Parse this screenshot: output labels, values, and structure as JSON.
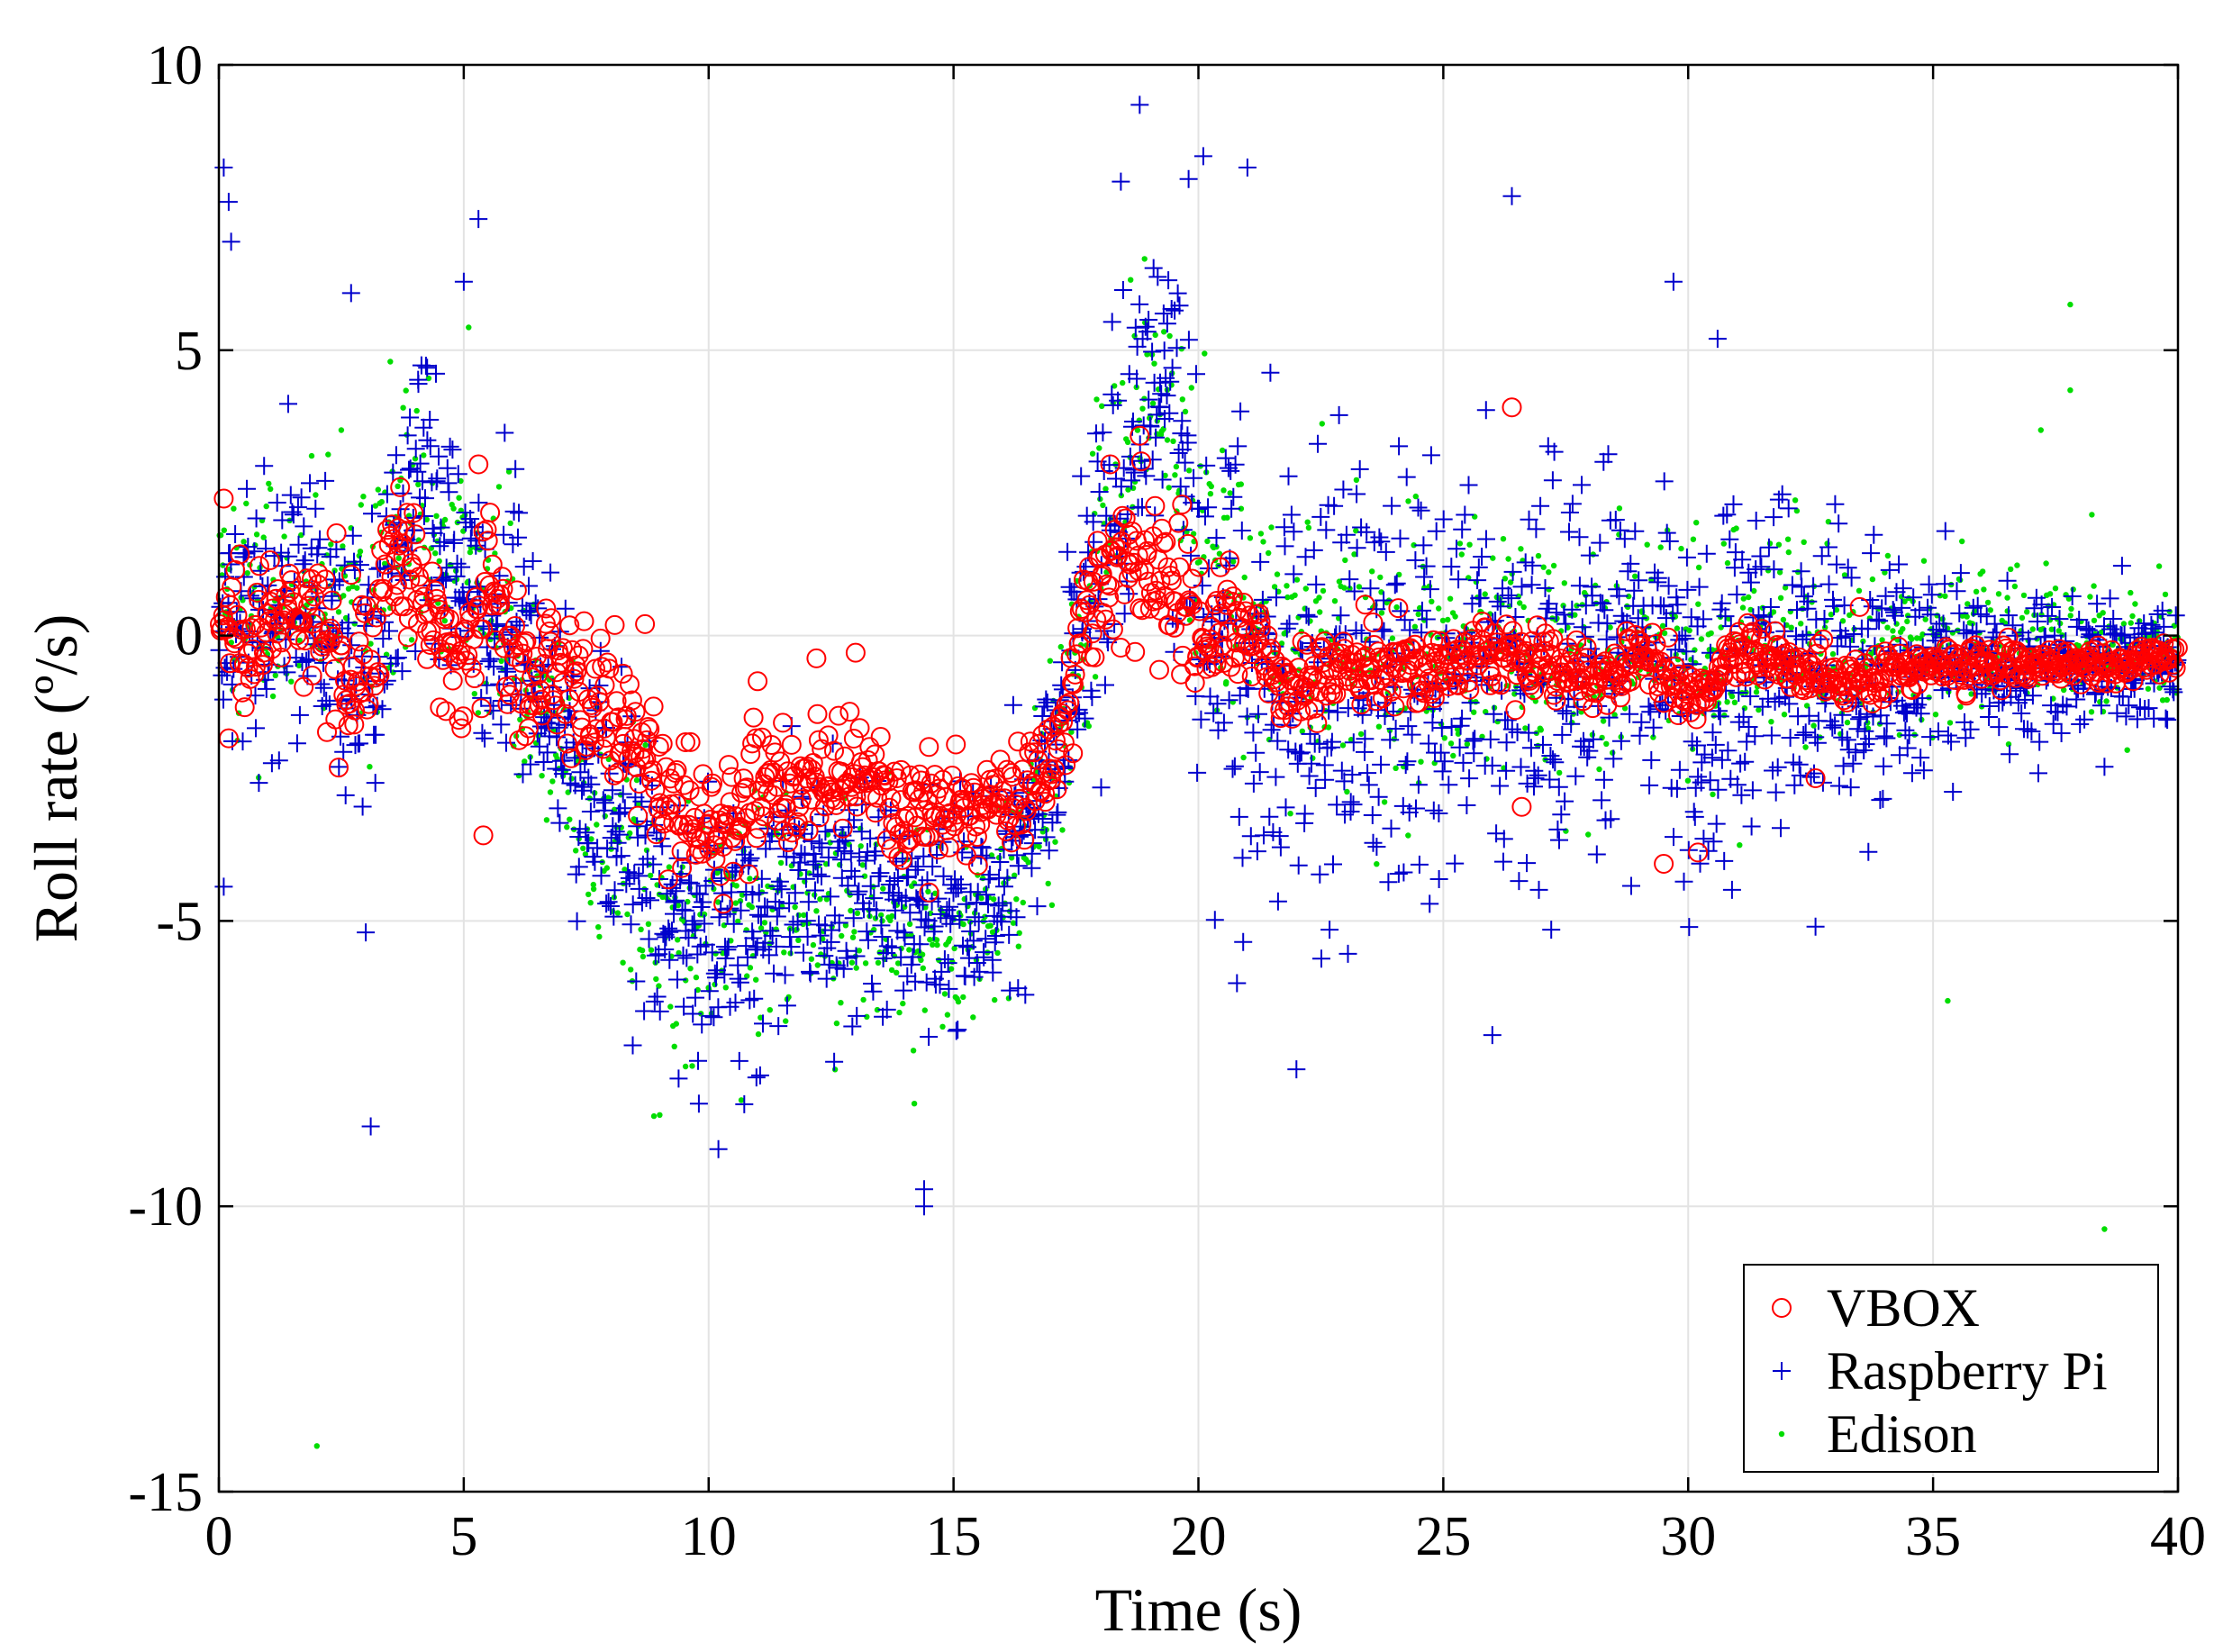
{
  "chart_data": {
    "type": "scatter",
    "title": "",
    "xlabel": "Time (s)",
    "ylabel": "Roll rate (º/s)",
    "xlim": [
      0,
      40
    ],
    "ylim": [
      -15,
      10
    ],
    "xticks": [
      0,
      5,
      10,
      15,
      20,
      25,
      30,
      35,
      40
    ],
    "yticks": [
      -15,
      -10,
      -5,
      0,
      5,
      10
    ],
    "grid": true,
    "legend_position": "bottom-right",
    "series": [
      {
        "name": "VBOX",
        "marker": "circle-open",
        "color": "#ff0000",
        "profile": [
          [
            0,
            0.2
          ],
          [
            1,
            0.3
          ],
          [
            2,
            0.1
          ],
          [
            3,
            -0.6
          ],
          [
            3.6,
            1.6
          ],
          [
            4.3,
            0.2
          ],
          [
            5,
            -0.4
          ],
          [
            5.5,
            1.2
          ],
          [
            6,
            -0.6
          ],
          [
            7,
            -0.6
          ],
          [
            8,
            -1.5
          ],
          [
            9,
            -2.6
          ],
          [
            10,
            -3.4
          ],
          [
            11,
            -2.6
          ],
          [
            12,
            -2.6
          ],
          [
            13,
            -2.6
          ],
          [
            14,
            -3.0
          ],
          [
            15,
            -3.2
          ],
          [
            16,
            -2.8
          ],
          [
            17,
            -2.4
          ],
          [
            17.5,
            -0.2
          ],
          [
            18,
            1.0
          ],
          [
            19,
            1.2
          ],
          [
            20,
            0.3
          ],
          [
            21,
            0.0
          ],
          [
            22,
            -1.0
          ],
          [
            23,
            -0.4
          ],
          [
            24,
            -0.6
          ],
          [
            25,
            -0.5
          ],
          [
            26,
            -0.3
          ],
          [
            27,
            -0.4
          ],
          [
            28,
            -0.9
          ],
          [
            29,
            -0.3
          ],
          [
            30,
            -1.2
          ],
          [
            31,
            -0.3
          ],
          [
            32,
            -0.4
          ],
          [
            33,
            -0.8
          ],
          [
            34,
            -0.7
          ],
          [
            35,
            -0.5
          ],
          [
            36,
            -0.5
          ],
          [
            37,
            -0.5
          ],
          [
            38,
            -0.5
          ],
          [
            39,
            -0.45
          ],
          [
            40,
            -0.4
          ]
        ],
        "noise": [
          [
            0,
            0.8
          ],
          [
            6,
            0.8
          ],
          [
            8,
            0.8
          ],
          [
            10,
            0.7
          ],
          [
            17,
            0.6
          ],
          [
            18,
            0.9
          ],
          [
            20,
            0.8
          ],
          [
            21,
            0.5
          ],
          [
            40,
            0.2
          ]
        ],
        "spikes": [
          [
            0.1,
            2.4
          ],
          [
            0.2,
            -1.8
          ],
          [
            3.7,
            2.6
          ],
          [
            5.3,
            3.0
          ],
          [
            5.4,
            -3.5
          ],
          [
            8.7,
            0.2
          ],
          [
            10.3,
            -4.7
          ],
          [
            11,
            -0.8
          ],
          [
            12.2,
            -0.4
          ],
          [
            13,
            -0.3
          ],
          [
            14.5,
            -4.5
          ],
          [
            18.2,
            3.0
          ],
          [
            18.8,
            3.5
          ],
          [
            19.2,
            -0.6
          ],
          [
            26.4,
            4.0
          ],
          [
            26.6,
            -3.0
          ],
          [
            29.5,
            -4.0
          ],
          [
            30.2,
            -3.8
          ],
          [
            32.6,
            -2.5
          ],
          [
            33.5,
            0.5
          ]
        ]
      },
      {
        "name": "Raspberry Pi",
        "marker": "plus",
        "color": "#0000cc",
        "profile": [
          [
            0,
            0.2
          ],
          [
            1,
            0.4
          ],
          [
            2,
            0.4
          ],
          [
            3,
            -0.8
          ],
          [
            4,
            2.8
          ],
          [
            5,
            1.0
          ],
          [
            6,
            0.0
          ],
          [
            7,
            -1.5
          ],
          [
            8,
            -3.0
          ],
          [
            9,
            -4.5
          ],
          [
            10,
            -5.5
          ],
          [
            11,
            -4.5
          ],
          [
            12,
            -4.3
          ],
          [
            13,
            -4.5
          ],
          [
            14,
            -4.8
          ],
          [
            15,
            -5.0
          ],
          [
            16,
            -4.5
          ],
          [
            17,
            -2.0
          ],
          [
            18,
            1.5
          ],
          [
            18.8,
            4.5
          ],
          [
            19.5,
            3.2
          ],
          [
            20,
            1.0
          ],
          [
            21,
            -0.5
          ],
          [
            22,
            -1.0
          ],
          [
            23,
            -0.6
          ],
          [
            24,
            -0.6
          ],
          [
            25,
            -0.5
          ],
          [
            26,
            -0.5
          ],
          [
            27,
            -0.5
          ],
          [
            28,
            -0.7
          ],
          [
            29,
            -0.4
          ],
          [
            30,
            -1.0
          ],
          [
            31,
            -0.4
          ],
          [
            32,
            -0.5
          ],
          [
            33,
            -0.6
          ],
          [
            34,
            -0.6
          ],
          [
            35,
            -0.5
          ],
          [
            36,
            -0.5
          ],
          [
            37,
            -0.5
          ],
          [
            38,
            -0.5
          ],
          [
            39,
            -0.5
          ],
          [
            40,
            -0.5
          ]
        ],
        "noise": [
          [
            0,
            1.6
          ],
          [
            6,
            1.6
          ],
          [
            8,
            1.6
          ],
          [
            10,
            1.5
          ],
          [
            17,
            1.3
          ],
          [
            18,
            2.2
          ],
          [
            20,
            2.3
          ],
          [
            22,
            2.6
          ],
          [
            28,
            2.3
          ],
          [
            33,
            1.6
          ],
          [
            36,
            0.9
          ],
          [
            40,
            0.6
          ]
        ],
        "spikes": [
          [
            0.1,
            8.2
          ],
          [
            0.2,
            7.6
          ],
          [
            0.25,
            6.9
          ],
          [
            0.1,
            -4.4
          ],
          [
            2.7,
            6.0
          ],
          [
            3.1,
            -8.6
          ],
          [
            3.0,
            -5.2
          ],
          [
            5.3,
            7.3
          ],
          [
            5.0,
            6.2
          ],
          [
            10.2,
            -9.0
          ],
          [
            9.8,
            -8.2
          ],
          [
            14.4,
            -10.0
          ],
          [
            14.4,
            -9.7
          ],
          [
            18.8,
            9.3
          ],
          [
            19.8,
            8.0
          ],
          [
            20.1,
            8.4
          ],
          [
            21.0,
            8.2
          ],
          [
            22.0,
            -7.6
          ],
          [
            26.0,
            -7.0
          ],
          [
            26.4,
            7.7
          ],
          [
            29.7,
            6.2
          ],
          [
            30.6,
            5.2
          ],
          [
            32.6,
            -5.1
          ],
          [
            38.5,
            -2.3
          ]
        ]
      },
      {
        "name": "Edison",
        "marker": "dot",
        "color": "#00dd00",
        "profile": [
          [
            0,
            0.4
          ],
          [
            1,
            0.6
          ],
          [
            2,
            0.6
          ],
          [
            3,
            0.5
          ],
          [
            4,
            2.2
          ],
          [
            5,
            0.8
          ],
          [
            6,
            0.2
          ],
          [
            7,
            -2.0
          ],
          [
            8,
            -3.5
          ],
          [
            9,
            -4.8
          ],
          [
            10,
            -5.2
          ],
          [
            11,
            -4.6
          ],
          [
            12,
            -4.6
          ],
          [
            13,
            -4.8
          ],
          [
            14,
            -5.2
          ],
          [
            15,
            -5.3
          ],
          [
            16,
            -4.5
          ],
          [
            17,
            -2.5
          ],
          [
            18,
            2.0
          ],
          [
            19,
            4.5
          ],
          [
            20,
            2.0
          ],
          [
            21,
            0.5
          ],
          [
            22,
            -0.5
          ],
          [
            23,
            -0.3
          ],
          [
            24,
            -0.3
          ],
          [
            25,
            -0.1
          ],
          [
            26,
            0.0
          ],
          [
            27,
            -0.1
          ],
          [
            28,
            -0.4
          ],
          [
            29,
            0.0
          ],
          [
            30,
            -0.5
          ],
          [
            31,
            0.0
          ],
          [
            32,
            -0.1
          ],
          [
            33,
            -0.2
          ],
          [
            34,
            -0.3
          ],
          [
            35,
            -0.1
          ],
          [
            36,
            0.0
          ],
          [
            37,
            0.1
          ],
          [
            38,
            0.0
          ],
          [
            39,
            -0.2
          ],
          [
            40,
            -0.3
          ]
        ],
        "noise": [
          [
            0,
            1.4
          ],
          [
            6,
            1.5
          ],
          [
            8,
            1.5
          ],
          [
            10,
            1.4
          ],
          [
            17,
            1.2
          ],
          [
            18,
            1.6
          ],
          [
            20,
            1.6
          ],
          [
            22,
            1.6
          ],
          [
            30,
            1.4
          ],
          [
            34,
            1.0
          ],
          [
            40,
            0.8
          ]
        ],
        "spikes": [
          [
            2.0,
            -14.2
          ],
          [
            2.5,
            3.6
          ],
          [
            3.5,
            4.8
          ],
          [
            5.1,
            5.4
          ],
          [
            9.0,
            -8.4
          ],
          [
            9.3,
            -7.2
          ],
          [
            14.2,
            -8.2
          ],
          [
            18.9,
            6.6
          ],
          [
            35.3,
            -6.4
          ],
          [
            37.8,
            5.8
          ],
          [
            37.8,
            4.3
          ],
          [
            37.2,
            3.6
          ],
          [
            38.5,
            -10.4
          ]
        ]
      }
    ]
  }
}
